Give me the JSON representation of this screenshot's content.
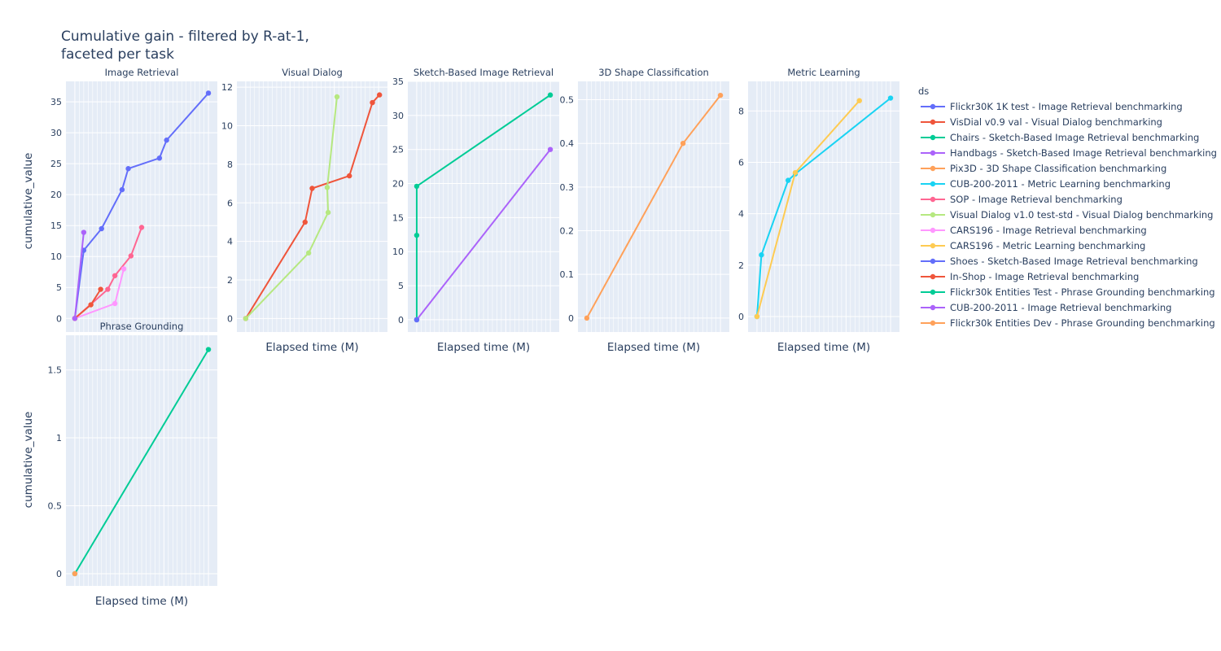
{
  "chart_data": {
    "type": "line",
    "title_lines": [
      "Cumulative gain - filtered by R-at-1,",
      "faceted per task"
    ],
    "xlabel": "Elapsed time (M)",
    "ylabel": "cumulative_value",
    "legend_title": "ds",
    "legend_placement": "right",
    "grid": true,
    "colors": {
      "Flickr30K 1K test - Image Retrieval benchmarking": "#636efa",
      "VisDial v0.9 val - Visual Dialog benchmarking": "#EF553B",
      "Chairs - Sketch-Based Image Retrieval benchmarking": "#00cc96",
      "Handbags - Sketch-Based Image Retrieval benchmarking": "#ab63fa",
      "Pix3D - 3D Shape Classification benchmarking": "#FFA15A",
      "CUB-200-2011 - Metric Learning benchmarking": "#19d3f3",
      "SOP - Image Retrieval benchmarking": "#FF6692",
      "Visual Dialog v1.0 test-std - Visual Dialog benchmarking": "#B6E880",
      "CARS196 - Image Retrieval benchmarking": "#FF97FF",
      "CARS196 - Metric Learning benchmarking": "#FECB52",
      "Shoes - Sketch-Based Image Retrieval benchmarking": "#636efa",
      "In-Shop - Image Retrieval benchmarking": "#EF553B",
      "Flickr30k Entities Test - Phrase Grounding benchmarking": "#00cc96",
      "CUB-200-2011 - Image Retrieval benchmarking": "#ab63fa",
      "Flickr30k Entities Dev - Phrase Grounding benchmarking": "#FFA15A"
    },
    "legend": [
      "Flickr30K 1K test - Image Retrieval benchmarking",
      "VisDial v0.9 val - Visual Dialog benchmarking",
      "Chairs - Sketch-Based Image Retrieval benchmarking",
      "Handbags - Sketch-Based Image Retrieval benchmarking",
      "Pix3D - 3D Shape Classification benchmarking",
      "CUB-200-2011 - Metric Learning benchmarking",
      "SOP - Image Retrieval benchmarking",
      "Visual Dialog v1.0 test-std - Visual Dialog benchmarking",
      "CARS196 - Image Retrieval benchmarking",
      "CARS196 - Metric Learning benchmarking",
      "Shoes - Sketch-Based Image Retrieval benchmarking",
      "In-Shop - Image Retrieval benchmarking",
      "Flickr30k Entities Test - Phrase Grounding benchmarking",
      "CUB-200-2011 - Image Retrieval benchmarking",
      "Flickr30k Entities Dev - Phrase Grounding benchmarking"
    ],
    "facets": [
      {
        "title": "Image Retrieval",
        "yticks": [
          "0",
          "5",
          "10",
          "15",
          "20",
          "25",
          "30",
          "35"
        ],
        "ylim": [
          -2.2,
          38.3
        ],
        "xlim": [
          -1.0,
          16.0
        ],
        "series": [
          {
            "name": "Flickr30K 1K test - Image Retrieval benchmarking",
            "x": [
              0,
              1.0,
              3.0,
              5.3,
              6.0,
              9.5,
              10.3,
              15.0
            ],
            "y": [
              0,
              11.0,
              14.5,
              20.8,
              24.2,
              25.9,
              28.8,
              36.4
            ]
          },
          {
            "name": "SOP - Image Retrieval benchmarking",
            "x": [
              0,
              3.7,
              4.5,
              6.3,
              7.5
            ],
            "y": [
              0,
              4.7,
              6.9,
              10.1,
              14.7
            ]
          },
          {
            "name": "CARS196 - Image Retrieval benchmarking",
            "x": [
              0,
              4.5,
              5.5
            ],
            "y": [
              0,
              2.4,
              8.0
            ]
          },
          {
            "name": "In-Shop - Image Retrieval benchmarking",
            "x": [
              0,
              1.8,
              2.9
            ],
            "y": [
              0,
              2.2,
              4.7
            ]
          },
          {
            "name": "CUB-200-2011 - Image Retrieval benchmarking",
            "x": [
              0,
              1.0
            ],
            "y": [
              0,
              13.9
            ]
          }
        ]
      },
      {
        "title": "Visual Dialog",
        "yticks": [
          "0",
          "2",
          "4",
          "6",
          "8",
          "10",
          "12"
        ],
        "ylim": [
          -0.7,
          12.3
        ],
        "xlim": [
          -1.0,
          16.0
        ],
        "series": [
          {
            "name": "VisDial v0.9 val - Visual Dialog benchmarking",
            "x": [
              0,
              6.7,
              7.5,
              11.7,
              14.3,
              15.1
            ],
            "y": [
              0,
              5.0,
              6.75,
              7.4,
              11.2,
              11.6
            ]
          },
          {
            "name": "Visual Dialog v1.0 test-std - Visual Dialog benchmarking",
            "x": [
              0,
              7.1,
              9.3,
              9.2,
              10.3
            ],
            "y": [
              0,
              3.4,
              5.5,
              6.8,
              11.5
            ]
          }
        ]
      },
      {
        "title": "Sketch-Based Image Retrieval",
        "yticks": [
          "0",
          "5",
          "10",
          "15",
          "20",
          "25",
          "30",
          "35"
        ],
        "ylim": [
          -1.8,
          35.0
        ],
        "xlim": [
          -1.0,
          16.0
        ],
        "series": [
          {
            "name": "Chairs - Sketch-Based Image Retrieval benchmarking",
            "x": [
              0,
              0,
              0,
              15.0
            ],
            "y": [
              0,
              12.4,
              19.6,
              33.0
            ]
          },
          {
            "name": "Handbags - Sketch-Based Image Retrieval benchmarking",
            "x": [
              0,
              15.0
            ],
            "y": [
              0,
              25.0
            ]
          },
          {
            "name": "Shoes - Sketch-Based Image Retrieval benchmarking",
            "x": [
              0
            ],
            "y": [
              0
            ]
          }
        ]
      },
      {
        "title": "3D Shape Classification",
        "yticks": [
          "0",
          "0.1",
          "0.2",
          "0.3",
          "0.4",
          "0.5"
        ],
        "ylim": [
          -0.032,
          0.542
        ],
        "xlim": [
          -1.0,
          16.0
        ],
        "series": [
          {
            "name": "Pix3D - 3D Shape Classification benchmarking",
            "x": [
              0,
              10.8,
              15.0
            ],
            "y": [
              0,
              0.4,
              0.51
            ]
          }
        ]
      },
      {
        "title": "Metric Learning",
        "yticks": [
          "0",
          "2",
          "4",
          "6",
          "8"
        ],
        "ylim": [
          -0.6,
          9.15
        ],
        "xlim": [
          -1.0,
          16.0
        ],
        "series": [
          {
            "name": "CUB-200-2011 - Metric Learning benchmarking",
            "x": [
              0,
              0.5,
              3.5,
              4.3,
              15.0
            ],
            "y": [
              0,
              2.4,
              5.3,
              5.55,
              8.5
            ]
          },
          {
            "name": "CARS196 - Metric Learning benchmarking",
            "x": [
              0,
              4.3,
              11.5
            ],
            "y": [
              0,
              5.6,
              8.4
            ]
          }
        ]
      },
      {
        "title": "Phrase Grounding",
        "yticks": [
          "0",
          "0.5",
          "1",
          "1.5"
        ],
        "ylim": [
          -0.09,
          1.755
        ],
        "xlim": [
          -1.0,
          16.0
        ],
        "series": [
          {
            "name": "Flickr30k Entities Test - Phrase Grounding benchmarking",
            "x": [
              0,
              15.0
            ],
            "y": [
              0,
              1.65
            ]
          },
          {
            "name": "Flickr30k Entities Dev - Phrase Grounding benchmarking",
            "x": [
              0
            ],
            "y": [
              0
            ]
          }
        ]
      }
    ]
  }
}
